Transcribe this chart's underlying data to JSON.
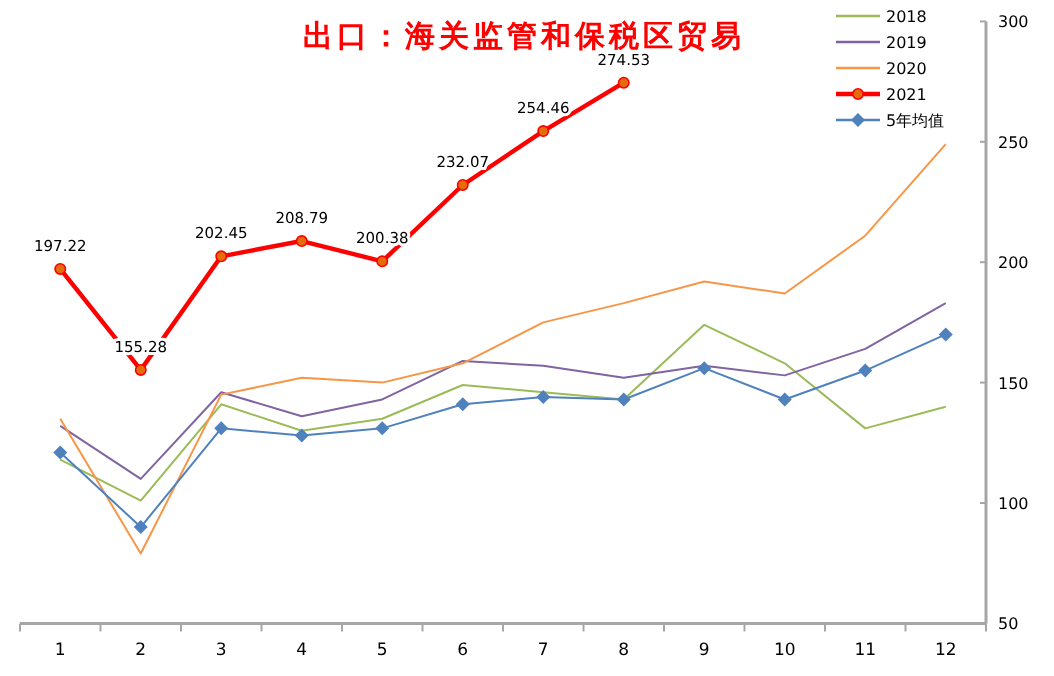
{
  "chart_data": {
    "type": "line",
    "title": "出口：海关监管和保税区贸易",
    "categories": [
      "1",
      "2",
      "3",
      "4",
      "5",
      "6",
      "7",
      "8",
      "9",
      "10",
      "11",
      "12"
    ],
    "ylim": [
      50,
      300
    ],
    "yticks": [
      50,
      100,
      150,
      200,
      250,
      300
    ],
    "grid": false,
    "legend": "top right",
    "series": [
      {
        "name": "2018",
        "color": "#9bbb59",
        "marker": "none",
        "values": [
          118,
          101,
          141,
          130,
          135,
          149,
          146,
          143,
          174,
          158,
          131,
          140
        ]
      },
      {
        "name": "2019",
        "color": "#8064a2",
        "marker": "none",
        "values": [
          132,
          110,
          146,
          136,
          143,
          159,
          157,
          152,
          157,
          153,
          164,
          183
        ]
      },
      {
        "name": "2020",
        "color": "#f79646",
        "marker": "none",
        "values": [
          135,
          79,
          145,
          152,
          150,
          158,
          175,
          183,
          192,
          187,
          211,
          249
        ]
      },
      {
        "name": "2021",
        "color": "#ff0000",
        "marker": "circle",
        "values": [
          197.22,
          155.28,
          202.45,
          208.79,
          200.38,
          232.07,
          254.46,
          274.53,
          null,
          null,
          null,
          null
        ],
        "value_labels": [
          "197.22",
          "155.28",
          "202.45",
          "208.79",
          "200.38",
          "232.07",
          "254.46",
          "274.53",
          null,
          null,
          null,
          null
        ]
      },
      {
        "name": "5年均值",
        "color": "#4f81bd",
        "marker": "diamond",
        "values": [
          121,
          90,
          131,
          128,
          131,
          141,
          144,
          143,
          156,
          143,
          155,
          170
        ]
      }
    ]
  }
}
